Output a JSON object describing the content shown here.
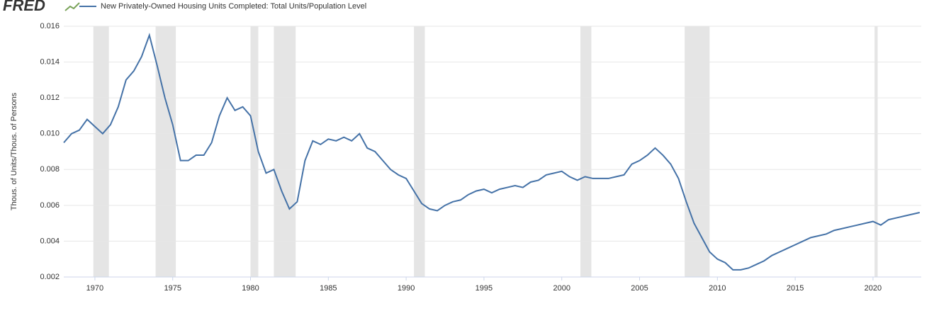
{
  "logo": "FRED",
  "chart_data": {
    "type": "line",
    "ylabel": "Thous. of Units/Thous. of Persons",
    "xlim": [
      1968,
      2023.1
    ],
    "ylim": [
      0.002,
      0.016
    ],
    "xticks": [
      1970,
      1975,
      1980,
      1985,
      1990,
      1995,
      2000,
      2005,
      2010,
      2015,
      2020
    ],
    "yticks": [
      0.002,
      0.004,
      0.006,
      0.008,
      {
        "value": 0.01,
        "label": "0.010"
      },
      0.012,
      0.014,
      0.016
    ],
    "grid": true,
    "recessions": [
      [
        1969.9,
        1970.9
      ],
      [
        1973.9,
        1975.2
      ],
      [
        1980.0,
        1980.5
      ],
      [
        1981.5,
        1982.9
      ],
      [
        1990.5,
        1991.2
      ],
      [
        2001.2,
        2001.9
      ],
      [
        2007.9,
        2009.5
      ],
      [
        2020.1,
        2020.3
      ]
    ],
    "recession_color": "#e5e5e5",
    "x": [
      1968.0,
      1968.5,
      1969.0,
      1969.5,
      1970.0,
      1970.5,
      1971.0,
      1971.5,
      1972.0,
      1972.5,
      1973.0,
      1973.5,
      1974.0,
      1974.5,
      1975.0,
      1975.5,
      1976.0,
      1976.5,
      1977.0,
      1977.5,
      1978.0,
      1978.5,
      1979.0,
      1979.5,
      1980.0,
      1980.5,
      1981.0,
      1981.5,
      1982.0,
      1982.5,
      1983.0,
      1983.5,
      1984.0,
      1984.5,
      1985.0,
      1985.5,
      1986.0,
      1986.5,
      1987.0,
      1987.5,
      1988.0,
      1988.5,
      1989.0,
      1989.5,
      1990.0,
      1990.5,
      1991.0,
      1991.5,
      1992.0,
      1992.5,
      1993.0,
      1993.5,
      1994.0,
      1994.5,
      1995.0,
      1995.5,
      1996.0,
      1996.5,
      1997.0,
      1997.5,
      1998.0,
      1998.5,
      1999.0,
      1999.5,
      2000.0,
      2000.5,
      2001.0,
      2001.5,
      2002.0,
      2002.5,
      2003.0,
      2003.5,
      2004.0,
      2004.5,
      2005.0,
      2005.5,
      2006.0,
      2006.5,
      2007.0,
      2007.5,
      2008.0,
      2008.5,
      2009.0,
      2009.5,
      2010.0,
      2010.5,
      2011.0,
      2011.5,
      2012.0,
      2012.5,
      2013.0,
      2013.5,
      2014.0,
      2014.5,
      2015.0,
      2015.5,
      2016.0,
      2016.5,
      2017.0,
      2017.5,
      2018.0,
      2018.5,
      2019.0,
      2019.5,
      2020.0,
      2020.5,
      2021.0,
      2021.5,
      2022.0,
      2022.5,
      2023.0
    ],
    "series": [
      {
        "name": "New Privately-Owned Housing Units Completed: Total Units/Population Level",
        "color": "#4572a7",
        "values": [
          0.0095,
          0.01,
          0.0102,
          0.0108,
          0.0104,
          0.01,
          0.0105,
          0.0115,
          0.013,
          0.0135,
          0.0143,
          0.0155,
          0.0138,
          0.012,
          0.0105,
          0.0085,
          0.0085,
          0.0088,
          0.0088,
          0.0095,
          0.011,
          0.012,
          0.0113,
          0.0115,
          0.011,
          0.009,
          0.0078,
          0.008,
          0.0068,
          0.0058,
          0.0062,
          0.0085,
          0.0096,
          0.0094,
          0.0097,
          0.0096,
          0.0098,
          0.0096,
          0.01,
          0.0092,
          0.009,
          0.0085,
          0.008,
          0.0077,
          0.0075,
          0.0068,
          0.0061,
          0.0058,
          0.0057,
          0.006,
          0.0062,
          0.0063,
          0.0066,
          0.0068,
          0.0069,
          0.0067,
          0.0069,
          0.007,
          0.0071,
          0.007,
          0.0073,
          0.0074,
          0.0077,
          0.0078,
          0.0079,
          0.0076,
          0.0074,
          0.0076,
          0.0075,
          0.0075,
          0.0075,
          0.0076,
          0.0077,
          0.0083,
          0.0085,
          0.0088,
          0.0092,
          0.0088,
          0.0083,
          0.0075,
          0.0062,
          0.005,
          0.0042,
          0.0034,
          0.003,
          0.0028,
          0.0024,
          0.0024,
          0.0025,
          0.0027,
          0.0029,
          0.0032,
          0.0034,
          0.0036,
          0.0038,
          0.004,
          0.0042,
          0.0043,
          0.0044,
          0.0046,
          0.0047,
          0.0048,
          0.0049,
          0.005,
          0.0051,
          0.0049,
          0.0052,
          0.0053,
          0.0054,
          0.0055,
          0.0056
        ]
      }
    ]
  }
}
